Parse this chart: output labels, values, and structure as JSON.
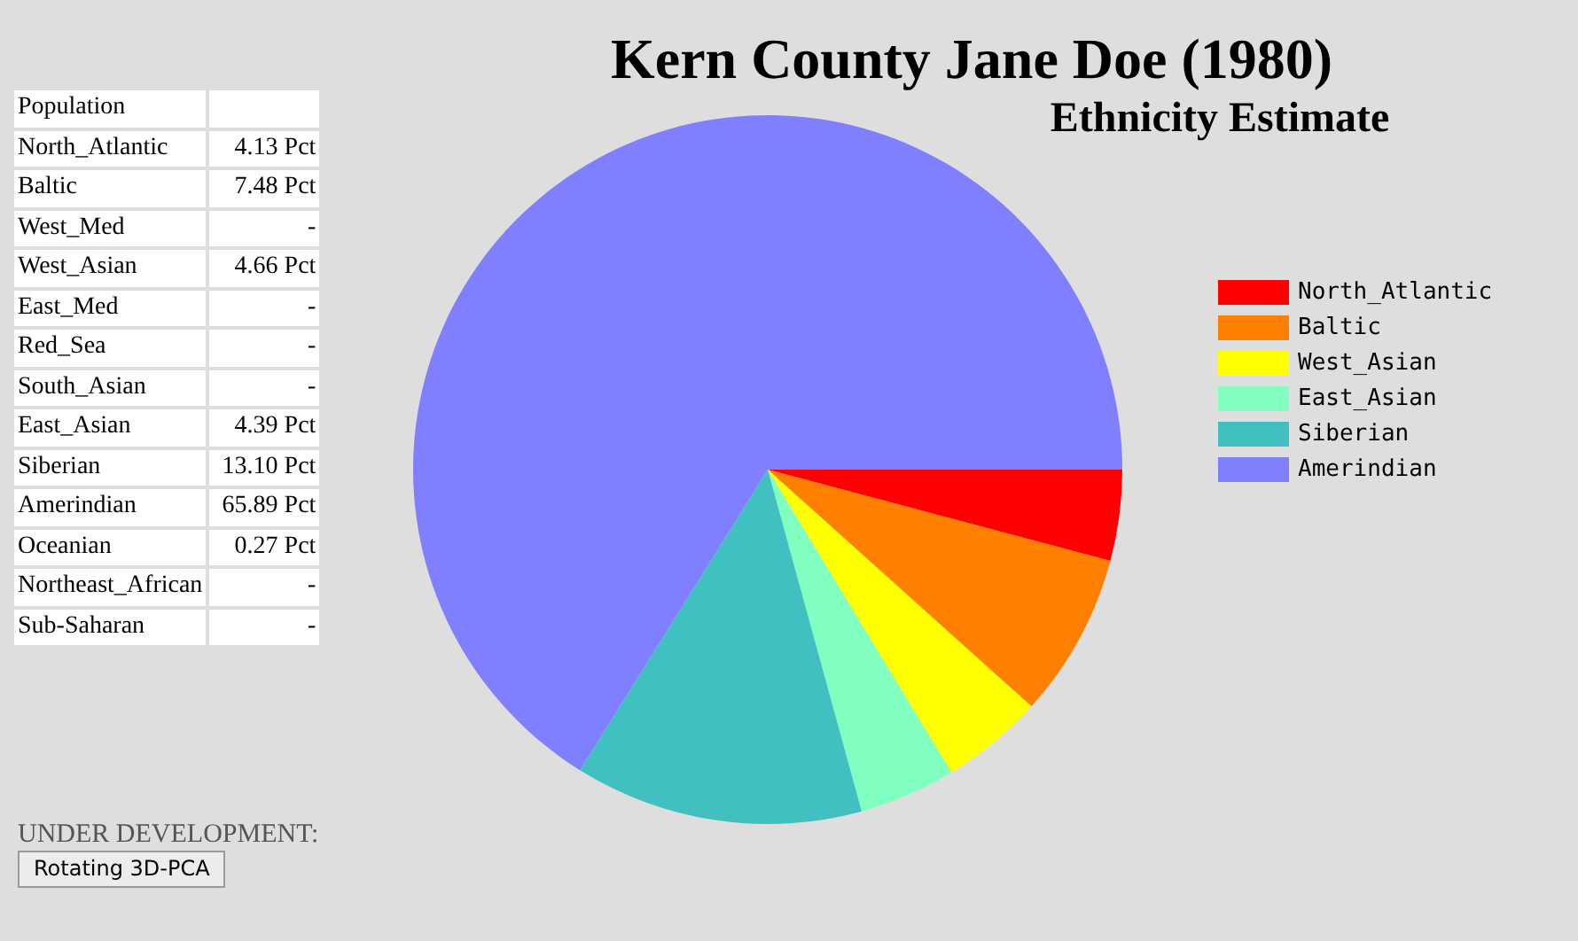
{
  "chart_data": [
    {
      "type": "other",
      "title": "Population",
      "categories": [
        "North_Atlantic",
        "Baltic",
        "West_Med",
        "West_Asian",
        "East_Med",
        "Red_Sea",
        "South_Asian",
        "East_Asian",
        "Siberian",
        "Amerindian",
        "Oceanian",
        "Northeast_African",
        "Sub-Saharan"
      ],
      "value_labels": [
        "4.13 Pct",
        "7.48 Pct",
        "-",
        "4.66 Pct",
        "-",
        "-",
        "-",
        "4.39 Pct",
        "13.10 Pct",
        "65.89 Pct",
        "0.27 Pct",
        "-",
        "-"
      ],
      "annotations": [
        "UNDER DEVELOPMENT:",
        "Rotating 3D-PCA"
      ]
    },
    {
      "type": "pie",
      "title": "Kern County Jane Doe (1980)",
      "subtitle": "Ethnicity Estimate",
      "categories": [
        "North_Atlantic",
        "Baltic",
        "West_Asian",
        "East_Asian",
        "Siberian",
        "Amerindian"
      ],
      "values": [
        4.13,
        7.48,
        4.66,
        4.39,
        13.1,
        65.89
      ],
      "colors": [
        "#ff0000",
        "#ff8000",
        "#ffff00",
        "#80ffc0",
        "#40c0c0",
        "#8080ff"
      ],
      "legend": "right"
    }
  ]
}
